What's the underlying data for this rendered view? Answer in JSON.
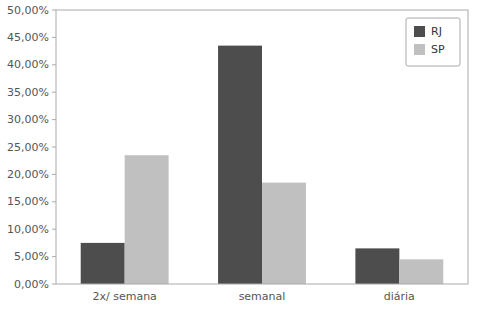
{
  "chart_data": {
    "type": "bar",
    "categories": [
      "2x/ semana",
      "semanal",
      "diária"
    ],
    "series": [
      {
        "name": "RJ",
        "color": "#4d4d4d",
        "values": [
          0.075,
          0.435,
          0.065
        ]
      },
      {
        "name": "SP",
        "color": "#c0c0c0",
        "values": [
          0.235,
          0.185,
          0.045
        ]
      }
    ],
    "ylim": [
      0,
      0.5
    ],
    "yticks": [
      {
        "value": 0.0,
        "label": "0,00%"
      },
      {
        "value": 0.05,
        "label": "5,00%"
      },
      {
        "value": 0.1,
        "label": "10,00%"
      },
      {
        "value": 0.15,
        "label": "15,00%"
      },
      {
        "value": 0.2,
        "label": "20,00%"
      },
      {
        "value": 0.25,
        "label": "25,00%"
      },
      {
        "value": 0.3,
        "label": "30,00%"
      },
      {
        "value": 0.35,
        "label": "35,00%"
      },
      {
        "value": 0.4,
        "label": "40,00%"
      },
      {
        "value": 0.45,
        "label": "45,00%"
      },
      {
        "value": 0.5,
        "label": "50,00%"
      }
    ],
    "legend": "upper right",
    "grid": false
  }
}
